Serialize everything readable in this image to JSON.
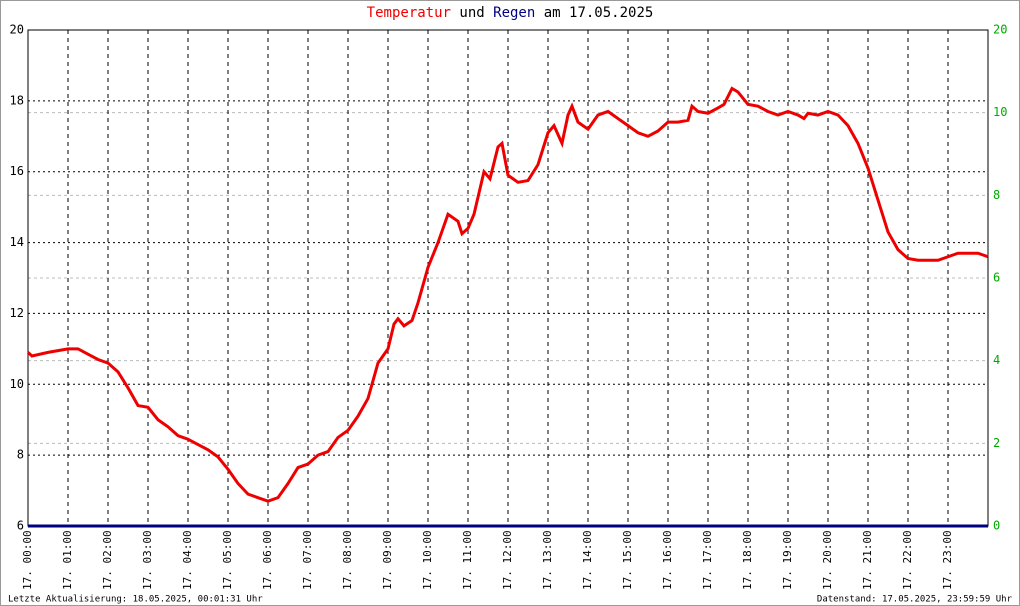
{
  "chart_data": {
    "type": "line",
    "title": {
      "connector": "und",
      "suffix": "am 17.05.2025"
    },
    "footer_left": "Letzte Aktualisierung: 18.05.2025, 00:01:31 Uhr",
    "footer_right": "Datenstand: 17.05.2025, 23:59:59 Uhr",
    "y2_top_label": "20",
    "xlim": [
      0,
      24
    ],
    "xticks": [
      {
        "value": 0,
        "label": "17. 00:00"
      },
      {
        "value": 1,
        "label": "17. 01:00"
      },
      {
        "value": 2,
        "label": "17. 02:00"
      },
      {
        "value": 3,
        "label": "17. 03:00"
      },
      {
        "value": 4,
        "label": "17. 04:00"
      },
      {
        "value": 5,
        "label": "17. 05:00"
      },
      {
        "value": 6,
        "label": "17. 06:00"
      },
      {
        "value": 7,
        "label": "17. 07:00"
      },
      {
        "value": 8,
        "label": "17. 08:00"
      },
      {
        "value": 9,
        "label": "17. 09:00"
      },
      {
        "value": 10,
        "label": "17. 10:00"
      },
      {
        "value": 11,
        "label": "17. 11:00"
      },
      {
        "value": 12,
        "label": "17. 12:00"
      },
      {
        "value": 13,
        "label": "17. 13:00"
      },
      {
        "value": 14,
        "label": "17. 14:00"
      },
      {
        "value": 15,
        "label": "17. 15:00"
      },
      {
        "value": 16,
        "label": "17. 16:00"
      },
      {
        "value": 17,
        "label": "17. 17:00"
      },
      {
        "value": 18,
        "label": "17. 18:00"
      },
      {
        "value": 19,
        "label": "17. 19:00"
      },
      {
        "value": 20,
        "label": "17. 20:00"
      },
      {
        "value": 21,
        "label": "17. 21:00"
      },
      {
        "value": 22,
        "label": "17. 22:00"
      },
      {
        "value": 23,
        "label": "17. 23:00"
      }
    ],
    "ylim": [
      6,
      20
    ],
    "yticks": [
      6,
      8,
      10,
      12,
      14,
      16,
      18,
      20
    ],
    "y2lim": [
      0,
      12
    ],
    "y2ticks": [
      0,
      2,
      4,
      6,
      8,
      10
    ],
    "grid": true,
    "series": [
      {
        "name": "Temperatur",
        "color": "#ee0000",
        "x": [
          0,
          0.1,
          0.5,
          1,
          1.25,
          1.5,
          1.75,
          2,
          2.25,
          2.5,
          2.75,
          3,
          3.25,
          3.5,
          3.75,
          4,
          4.25,
          4.5,
          4.75,
          5,
          5.25,
          5.5,
          5.75,
          6,
          6.25,
          6.5,
          6.75,
          7,
          7.25,
          7.5,
          7.75,
          8,
          8.25,
          8.5,
          8.75,
          9,
          9.15,
          9.25,
          9.4,
          9.6,
          9.75,
          10,
          10.25,
          10.5,
          10.75,
          10.85,
          11,
          11.15,
          11.4,
          11.55,
          11.75,
          11.85,
          12,
          12.25,
          12.5,
          12.75,
          13,
          13.15,
          13.35,
          13.5,
          13.6,
          13.75,
          14,
          14.25,
          14.5,
          14.75,
          15,
          15.25,
          15.5,
          15.75,
          16,
          16.25,
          16.5,
          16.6,
          16.75,
          17,
          17.25,
          17.4,
          17.6,
          17.75,
          18,
          18.25,
          18.5,
          18.75,
          19,
          19.25,
          19.4,
          19.5,
          19.75,
          20,
          20.25,
          20.5,
          20.75,
          21,
          21.25,
          21.5,
          21.75,
          22,
          22.25,
          22.5,
          22.75,
          23,
          23.25,
          23.5,
          23.75,
          24
        ],
        "values": [
          10.9,
          10.8,
          10.9,
          11.0,
          11.0,
          10.85,
          10.7,
          10.6,
          10.35,
          9.9,
          9.4,
          9.35,
          9.0,
          8.8,
          8.55,
          8.45,
          8.3,
          8.15,
          7.95,
          7.6,
          7.2,
          6.9,
          6.8,
          6.7,
          6.8,
          7.2,
          7.65,
          7.75,
          8.0,
          8.1,
          8.5,
          8.7,
          9.1,
          9.6,
          10.6,
          11.0,
          11.7,
          11.85,
          11.65,
          11.8,
          12.3,
          13.3,
          14.0,
          14.8,
          14.6,
          14.25,
          14.4,
          14.8,
          16.0,
          15.8,
          16.7,
          16.8,
          15.9,
          15.7,
          15.75,
          16.2,
          17.1,
          17.3,
          16.8,
          17.6,
          17.85,
          17.4,
          17.2,
          17.6,
          17.7,
          17.5,
          17.3,
          17.1,
          17.0,
          17.15,
          17.4,
          17.4,
          17.45,
          17.85,
          17.7,
          17.65,
          17.8,
          17.9,
          18.35,
          18.25,
          17.9,
          17.85,
          17.7,
          17.6,
          17.7,
          17.6,
          17.5,
          17.65,
          17.6,
          17.7,
          17.6,
          17.3,
          16.8,
          16.1,
          15.2,
          14.3,
          13.8,
          13.55,
          13.5,
          13.5,
          13.5,
          13.6,
          13.7,
          13.7,
          13.7,
          13.6
        ]
      },
      {
        "name": "Regen",
        "color": "#000080",
        "axis": "y2",
        "x": [
          0,
          24
        ],
        "values": [
          0,
          0
        ]
      }
    ]
  }
}
